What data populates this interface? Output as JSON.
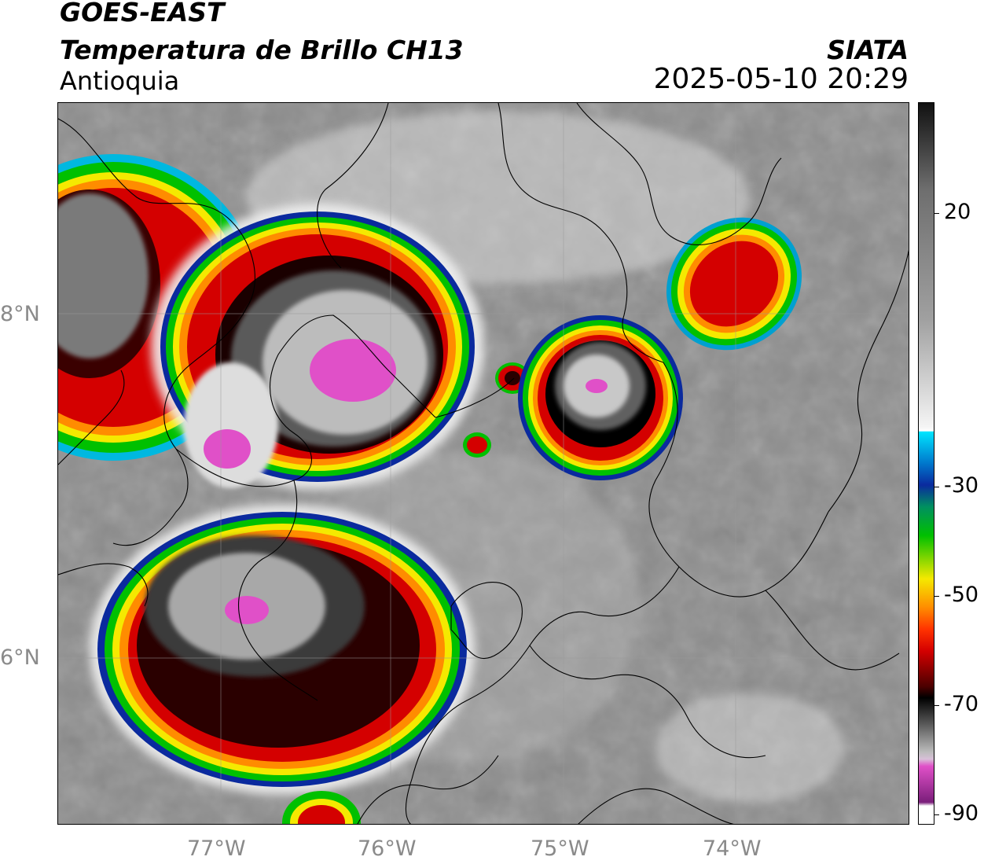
{
  "header": {
    "source": "GOES-EAST",
    "product": "Temperatura de Brillo CH13",
    "region": "Antioquia",
    "organization": "SIATA",
    "timestamp": "2025-05-10 20:29"
  },
  "map": {
    "latitude_labels": [
      "8°N",
      "6°N"
    ],
    "longitude_labels": [
      "77°W",
      "76°W",
      "75°W",
      "74°W"
    ],
    "background_color": "#8a8a8a",
    "gridlines": true
  },
  "colorbar": {
    "ticks": [
      "20",
      "-30",
      "-50",
      "-70",
      "-90"
    ],
    "colors": {
      "warm_gray": "#6e6e6e",
      "light": "#f5f5f5",
      "cyan": "#00e5ff",
      "blue": "#0a2a9e",
      "green": "#00c000",
      "yellow": "#f5e900",
      "orange": "#ff8c00",
      "red": "#d40000",
      "dark_red": "#4a0000",
      "black": "#000000",
      "magenta": "#e050c8",
      "purple": "#7a1e7a"
    }
  }
}
